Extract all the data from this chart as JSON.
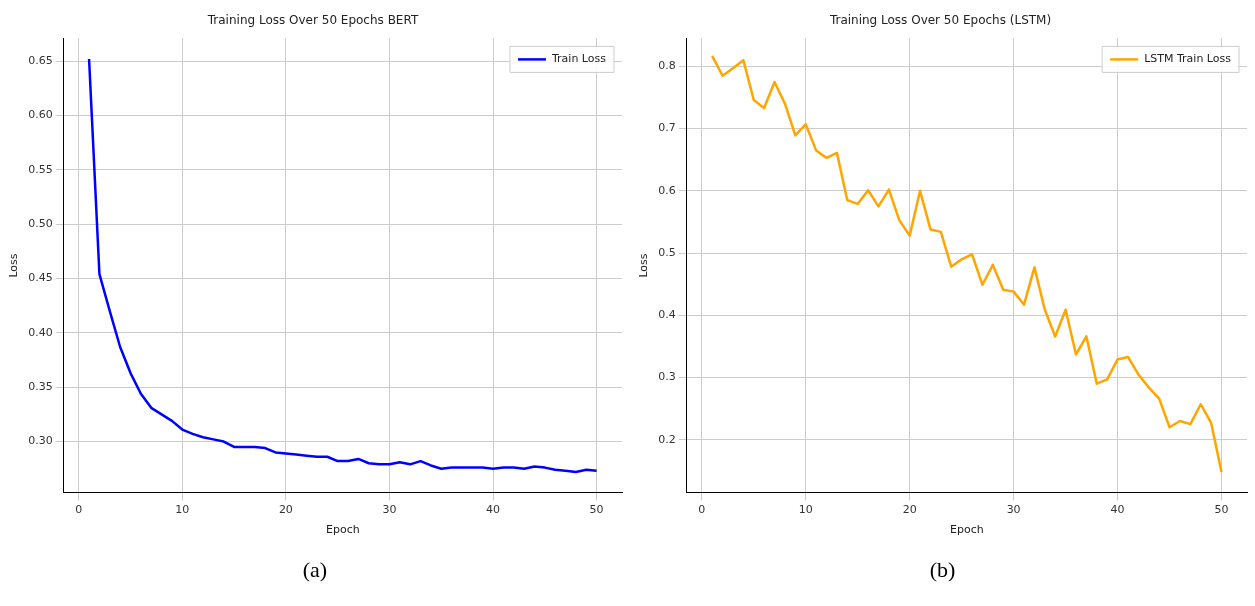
{
  "chart_data": [
    {
      "type": "line",
      "title": "Training Loss Over 50 Epochs BERT",
      "xlabel": "Epoch",
      "ylabel": "Loss",
      "x": [
        1,
        2,
        3,
        4,
        5,
        6,
        7,
        8,
        9,
        10,
        11,
        12,
        13,
        14,
        15,
        16,
        17,
        18,
        19,
        20,
        21,
        22,
        23,
        24,
        25,
        26,
        27,
        28,
        29,
        30,
        31,
        32,
        33,
        34,
        35,
        36,
        37,
        38,
        39,
        40,
        41,
        42,
        43,
        44,
        45,
        46,
        47,
        48,
        49,
        50
      ],
      "series": [
        {
          "name": "Train Loss",
          "color": "#0000ff",
          "values": [
            0.652,
            0.454,
            0.42,
            0.387,
            0.363,
            0.344,
            0.331,
            0.325,
            0.319,
            0.311,
            0.307,
            0.304,
            0.302,
            0.3,
            0.295,
            0.295,
            0.295,
            0.294,
            0.29,
            0.289,
            0.288,
            0.287,
            0.286,
            0.286,
            0.282,
            0.282,
            0.284,
            0.28,
            0.279,
            0.279,
            0.281,
            0.279,
            0.282,
            0.278,
            0.275,
            0.276,
            0.276,
            0.276,
            0.276,
            0.275,
            0.276,
            0.276,
            0.275,
            0.277,
            0.276,
            0.274,
            0.273,
            0.272,
            0.274,
            0.273
          ]
        }
      ],
      "xlim": [
        -1.45,
        52.45
      ],
      "xticks": [
        0,
        10,
        20,
        30,
        40,
        50
      ],
      "ylim": [
        0.253,
        0.671
      ],
      "yticks": [
        {
          "value": 0.3,
          "label": "0.30"
        },
        0.35,
        {
          "value": 0.4,
          "label": "0.40"
        },
        0.45,
        {
          "value": 0.5,
          "label": "0.50"
        },
        0.55,
        {
          "value": 0.6,
          "label": "0.60"
        },
        0.65
      ],
      "grid": true,
      "legend": "top right",
      "annotations": [
        "(a)"
      ]
    },
    {
      "type": "line",
      "title": "Training Loss Over 50 Epochs (LSTM)",
      "xlabel": "Epoch",
      "ylabel": "Loss",
      "x": [
        1,
        2,
        3,
        4,
        5,
        6,
        7,
        8,
        9,
        10,
        11,
        12,
        13,
        14,
        15,
        16,
        17,
        18,
        19,
        20,
        21,
        22,
        23,
        24,
        25,
        26,
        27,
        28,
        29,
        30,
        31,
        32,
        33,
        34,
        35,
        36,
        37,
        38,
        39,
        40,
        41,
        42,
        43,
        44,
        45,
        46,
        47,
        48,
        49,
        50
      ],
      "series": [
        {
          "name": "LSTM Train Loss",
          "color": "#ffa500",
          "values": [
            0.817,
            0.785,
            0.797,
            0.81,
            0.746,
            0.733,
            0.775,
            0.74,
            0.689,
            0.707,
            0.665,
            0.653,
            0.661,
            0.585,
            0.579,
            0.601,
            0.575,
            0.602,
            0.553,
            0.528,
            0.6,
            0.538,
            0.534,
            0.478,
            0.49,
            0.498,
            0.449,
            0.481,
            0.441,
            0.438,
            0.417,
            0.477,
            0.409,
            0.366,
            0.409,
            0.337,
            0.366,
            0.29,
            0.297,
            0.329,
            0.333,
            0.305,
            0.284,
            0.266,
            0.22,
            0.23,
            0.225,
            0.257,
            0.227,
            0.148
          ]
        }
      ],
      "xlim": [
        -1.45,
        52.45
      ],
      "xticks": [
        0,
        10,
        20,
        30,
        40,
        50
      ],
      "ylim": [
        0.115,
        0.845
      ],
      "yticks": [
        0.2,
        0.3,
        0.4,
        0.5,
        0.6,
        0.7,
        0.8
      ],
      "grid": true,
      "legend": "top right",
      "annotations": [
        "(b)"
      ]
    }
  ]
}
